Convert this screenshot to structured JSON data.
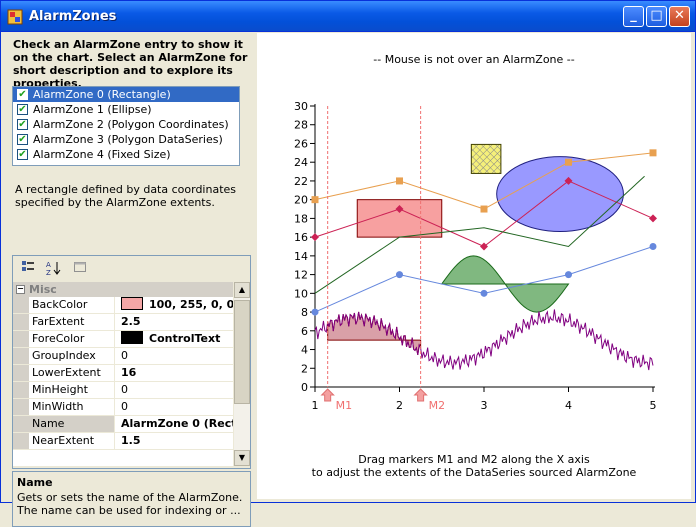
{
  "window": {
    "title": "AlarmZones",
    "minimize_label": "_",
    "maximize_label": "□",
    "close_label": "✕"
  },
  "instructions": "Check an AlarmZone entry to show it on the chart.  Select an AlarmZone for short description and to explore its properties.",
  "zones": [
    {
      "label": "AlarmZone 0 (Rectangle)",
      "checked": true,
      "selected": true
    },
    {
      "label": "AlarmZone 1 (Ellipse)",
      "checked": true,
      "selected": false
    },
    {
      "label": "AlarmZone 2 (Polygon Coordinates)",
      "checked": true,
      "selected": false
    },
    {
      "label": "AlarmZone 3 (Polygon DataSeries)",
      "checked": true,
      "selected": false
    },
    {
      "label": "AlarmZone 4 (Fixed Size)",
      "checked": true,
      "selected": false
    }
  ],
  "description": "A rectangle defined by data coordinates specified by the AlarmZone extents.",
  "property_grid": {
    "category": "Misc",
    "rows": [
      {
        "name": "BackColor",
        "value": "100, 255, 0, 0",
        "swatch": "#f4a6a6",
        "bold": true
      },
      {
        "name": "FarExtent",
        "value": "2.5",
        "bold": true
      },
      {
        "name": "ForeColor",
        "value": "ControlText",
        "swatch": "#000000",
        "bold": true
      },
      {
        "name": "GroupIndex",
        "value": "0",
        "bold": false
      },
      {
        "name": "LowerExtent",
        "value": "16",
        "bold": true
      },
      {
        "name": "MinHeight",
        "value": "0",
        "bold": false
      },
      {
        "name": "MinWidth",
        "value": "0",
        "bold": false
      },
      {
        "name": "Name",
        "value": "AlarmZone 0 (Rect",
        "bold": true,
        "selected": true
      },
      {
        "name": "NearExtent",
        "value": "1.5",
        "bold": true
      }
    ]
  },
  "help": {
    "title": "Name",
    "text": "Gets or sets the name of the AlarmZone. The name can be used for indexing or ..."
  },
  "chart": {
    "status": "-- Mouse is not over an AlarmZone --",
    "footer_line1": "Drag markers M1 and M2 along the X axis",
    "footer_line2": "to adjust the extents of the DataSeries sourced AlarmZone",
    "marker1": "M1",
    "marker2": "M2"
  },
  "chart_data": {
    "type": "line",
    "ylim": [
      0,
      30
    ],
    "xlim": [
      1,
      5
    ],
    "yticks": [
      0,
      2,
      4,
      6,
      8,
      10,
      12,
      14,
      16,
      18,
      20,
      22,
      24,
      26,
      28,
      30
    ],
    "xticks": [
      1,
      2,
      3,
      4,
      5
    ],
    "colors": {
      "orange": "#e8a050",
      "crimson": "#cc2255",
      "blue": "#6688dd",
      "green": "#226622",
      "purple": "#800080",
      "zone_rect": "#f7a0a0",
      "zone_ellipse": "#9999ff",
      "zone_poly": "#80b880",
      "zone_hatch": "#f5f07a"
    },
    "series": [
      {
        "x": [
          1,
          2,
          3,
          4,
          5
        ],
        "values": [
          20,
          22,
          19,
          24,
          25
        ],
        "color": "orange",
        "marker": "square"
      },
      {
        "x": [
          1,
          2,
          3,
          4,
          5
        ],
        "values": [
          16,
          19,
          15,
          22,
          18
        ],
        "color": "crimson",
        "marker": "diamond"
      },
      {
        "x": [
          1,
          2,
          3,
          4,
          5
        ],
        "values": [
          8,
          12,
          10,
          12,
          15
        ],
        "color": "blue",
        "marker": "circle"
      },
      {
        "x": [
          1,
          2,
          3,
          4,
          4.9
        ],
        "values": [
          10,
          16,
          17,
          15,
          22.5
        ],
        "color": "green",
        "marker": "none"
      }
    ],
    "markers": {
      "M1": 1.15,
      "M2": 2.25
    },
    "zones": {
      "rectangle": {
        "x": [
          1.5,
          2.5
        ],
        "y": [
          16,
          20
        ]
      },
      "ellipse": {
        "cx": 3.9,
        "cy": 20.6,
        "rx": 0.75,
        "ry": 4
      },
      "fixed": {
        "x": [
          2.85,
          3.2
        ],
        "y": [
          22.8,
          25.9
        ]
      }
    }
  }
}
